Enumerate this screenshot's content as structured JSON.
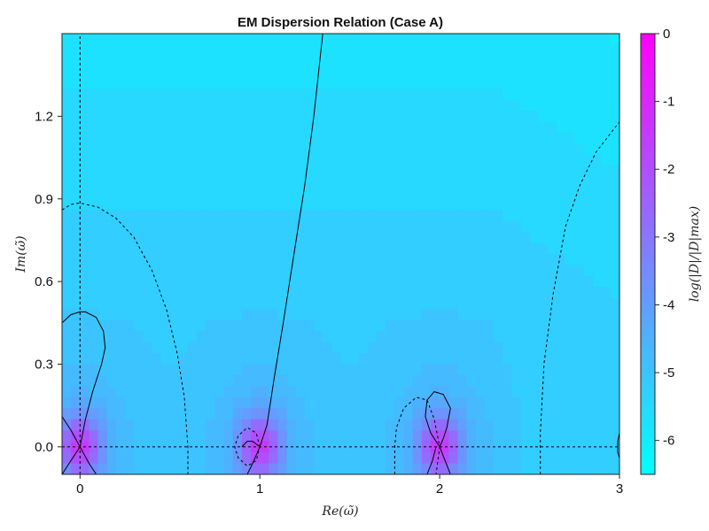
{
  "chart_data": {
    "type": "heatmap",
    "title": "EM Dispersion Relation (Case A)",
    "xlabel": "Re(ω̃)",
    "ylabel": "Im(ω̃)",
    "xlim": [
      -0.1,
      3.0
    ],
    "ylim": [
      -0.1,
      1.5
    ],
    "x_ticks": [
      0,
      1,
      2,
      3
    ],
    "x_tick_labels": [
      "0",
      "1",
      "2",
      "3"
    ],
    "y_ticks": [
      0.0,
      0.3,
      0.6,
      0.9,
      1.2
    ],
    "y_tick_labels": [
      "0.0",
      "0.3",
      "0.6",
      "0.9",
      "1.2"
    ],
    "colorbar": {
      "label": "log(|D|/|D|max)",
      "range": [
        -6.5,
        0
      ],
      "ticks": [
        0,
        -1,
        -2,
        -3,
        -4,
        -5,
        -6
      ],
      "tick_labels": [
        "0",
        "-1",
        "-2",
        "-3",
        "-4",
        "-5",
        "-6"
      ],
      "colormap": [
        "#00ffff",
        "#ff00ff"
      ],
      "colormap_name": "cool"
    },
    "zeros": [
      {
        "re": 0.0,
        "im": 0.0
      },
      {
        "re": 1.0,
        "im": 0.0
      },
      {
        "re": 2.0,
        "im": 0.0
      }
    ],
    "contour_re_zero": [
      [
        [
          -0.1,
          0.11
        ],
        [
          -0.05,
          0.06
        ],
        [
          0.0,
          0.0
        ],
        [
          0.05,
          -0.06
        ],
        [
          0.09,
          -0.1
        ]
      ],
      [
        [
          -0.1,
          -0.1
        ],
        [
          -0.05,
          -0.05
        ],
        [
          0.0,
          0.0
        ],
        [
          0.03,
          0.1
        ],
        [
          0.07,
          0.2
        ],
        [
          0.12,
          0.3
        ],
        [
          0.14,
          0.36
        ],
        [
          0.13,
          0.42
        ],
        [
          0.09,
          0.47
        ],
        [
          0.03,
          0.49
        ],
        [
          0.0,
          0.49
        ],
        [
          -0.05,
          0.48
        ],
        [
          -0.1,
          0.45
        ]
      ],
      [
        [
          0.9,
          0.0
        ],
        [
          0.93,
          0.02
        ],
        [
          0.96,
          0.02
        ],
        [
          0.98,
          0.01
        ],
        [
          1.0,
          0.0
        ]
      ],
      [
        [
          0.93,
          -0.1
        ],
        [
          0.96,
          -0.06
        ],
        [
          1.0,
          0.0
        ],
        [
          1.04,
          0.08
        ],
        [
          1.08,
          0.25
        ],
        [
          1.13,
          0.45
        ],
        [
          1.19,
          0.7
        ],
        [
          1.25,
          0.95
        ],
        [
          1.3,
          1.2
        ],
        [
          1.35,
          1.5
        ]
      ],
      [
        [
          1.98,
          0.0
        ],
        [
          1.96,
          -0.05
        ],
        [
          1.93,
          -0.1
        ]
      ],
      [
        [
          1.95,
          0.05
        ],
        [
          1.92,
          0.11
        ],
        [
          1.93,
          0.17
        ],
        [
          1.97,
          0.2
        ],
        [
          2.02,
          0.19
        ],
        [
          2.06,
          0.14
        ],
        [
          2.04,
          0.07
        ],
        [
          2.02,
          0.03
        ],
        [
          2.0,
          0.0
        ],
        [
          2.03,
          -0.05
        ],
        [
          2.06,
          -0.1
        ]
      ],
      [
        [
          1.95,
          0.05
        ],
        [
          1.98,
          0.02
        ],
        [
          2.0,
          0.0
        ]
      ],
      [
        [
          3.0,
          0.05
        ],
        [
          2.99,
          0.02
        ],
        [
          2.99,
          -0.02
        ],
        [
          3.0,
          -0.04
        ]
      ]
    ],
    "contour_im_zero": [
      [
        [
          -0.1,
          0.0
        ],
        [
          3.0,
          0.0
        ]
      ],
      [
        [
          0.0,
          -0.1
        ],
        [
          0.0,
          1.5
        ]
      ],
      [
        [
          -0.1,
          0.86
        ],
        [
          -0.05,
          0.88
        ],
        [
          0.0,
          0.885
        ],
        [
          0.1,
          0.87
        ],
        [
          0.2,
          0.83
        ],
        [
          0.3,
          0.76
        ],
        [
          0.4,
          0.64
        ],
        [
          0.48,
          0.5
        ],
        [
          0.54,
          0.34
        ],
        [
          0.58,
          0.18
        ],
        [
          0.6,
          0.0
        ],
        [
          0.6,
          -0.1
        ]
      ],
      [
        [
          1.0,
          0.0
        ],
        [
          0.98,
          0.05
        ],
        [
          0.93,
          0.07
        ],
        [
          0.88,
          0.04
        ],
        [
          0.86,
          0.0
        ],
        [
          0.88,
          -0.04
        ],
        [
          0.93,
          -0.07
        ],
        [
          0.98,
          -0.05
        ],
        [
          1.0,
          0.0
        ]
      ],
      [
        [
          1.75,
          -0.1
        ],
        [
          1.75,
          0.0
        ],
        [
          1.76,
          0.07
        ],
        [
          1.8,
          0.14
        ],
        [
          1.87,
          0.18
        ],
        [
          1.93,
          0.17
        ],
        [
          1.97,
          0.1
        ],
        [
          2.0,
          0.0
        ],
        [
          1.99,
          -0.05
        ],
        [
          1.98,
          -0.1
        ]
      ],
      [
        [
          2.56,
          -0.1
        ],
        [
          2.56,
          0.05
        ],
        [
          2.58,
          0.3
        ],
        [
          2.63,
          0.55
        ],
        [
          2.7,
          0.8
        ],
        [
          2.78,
          0.95
        ],
        [
          2.87,
          1.07
        ],
        [
          3.0,
          1.18
        ]
      ]
    ]
  }
}
